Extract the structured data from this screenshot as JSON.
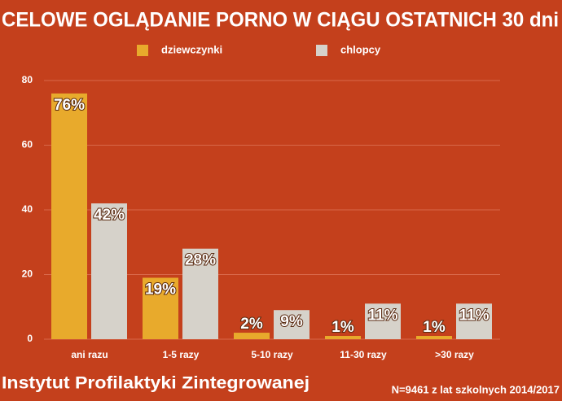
{
  "chart_data": {
    "type": "bar",
    "title": "CELOWE OGLĄDANIE PORNO W CIĄGU OSTATNICH 30 dni",
    "categories": [
      "ani razu",
      "1-5 razy",
      "5-10 razy",
      "11-30 razy",
      ">30 razy"
    ],
    "series": [
      {
        "name": "dziewczynki",
        "color": "#e8aa2c",
        "values": [
          76,
          19,
          2,
          1,
          1
        ],
        "value_labels": [
          "76%",
          "19%",
          "2%",
          "1%",
          "1%"
        ]
      },
      {
        "name": "chlopcy",
        "color": "#d6d2ca",
        "values": [
          42,
          28,
          9,
          11,
          11
        ],
        "value_labels": [
          "42%",
          "28%",
          "9%",
          "11%",
          "11%"
        ]
      }
    ],
    "ylim": [
      0,
      80
    ],
    "yticks": [
      0,
      20,
      40,
      60,
      80
    ],
    "grid": true,
    "source": "Instytut Profilaktyki Zintegrowanej",
    "note": "N=9461 z lat szkolnych 2014/2017"
  }
}
